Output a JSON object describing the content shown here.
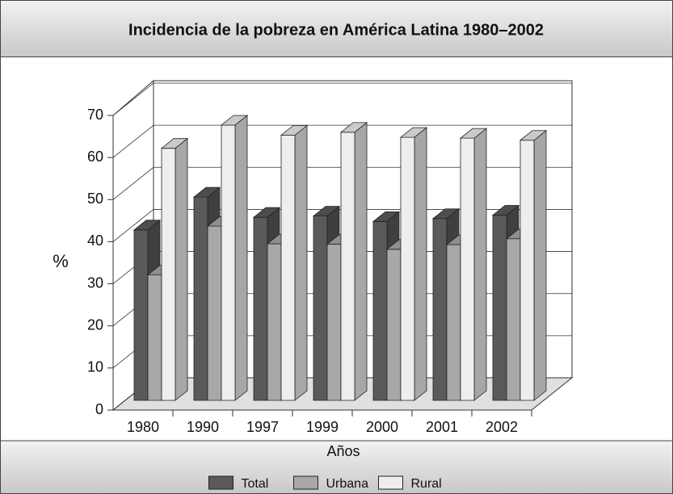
{
  "chart_data": {
    "type": "bar3d",
    "title": "Incidencia de la pobreza en América Latina 1980–2002",
    "categories": [
      "1980",
      "1990",
      "1997",
      "1999",
      "2000",
      "2001",
      "2002"
    ],
    "series": [
      {
        "name": "Total",
        "color": "#5a5a5a",
        "values": [
          40.5,
          48.3,
          43.5,
          43.8,
          42.5,
          43.2,
          44.0
        ]
      },
      {
        "name": "Urbana",
        "color": "#a8a8a8",
        "values": [
          29.8,
          41.4,
          37.2,
          37.1,
          35.9,
          37.0,
          38.4
        ]
      },
      {
        "name": "Rural",
        "color": "#eeeeee",
        "values": [
          59.9,
          65.4,
          63.0,
          63.7,
          62.5,
          62.3,
          61.8
        ]
      }
    ],
    "ylabel": "%",
    "xlabel": "Años",
    "ylim": [
      0,
      70
    ],
    "yticks": [
      0,
      10,
      20,
      30,
      40,
      50,
      60,
      70
    ],
    "grid": true,
    "legend": "bottom"
  }
}
